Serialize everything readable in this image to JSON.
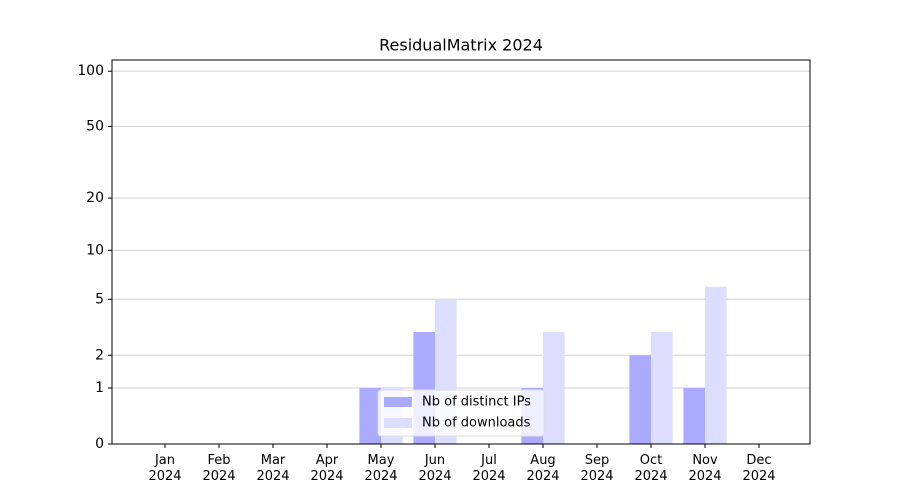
{
  "chart_data": {
    "type": "bar",
    "title": "ResidualMatrix 2024",
    "categories": [
      "Jan\n2024",
      "Feb\n2024",
      "Mar\n2024",
      "Apr\n2024",
      "May\n2024",
      "Jun\n2024",
      "Jul\n2024",
      "Aug\n2024",
      "Sep\n2024",
      "Oct\n2024",
      "Nov\n2024",
      "Dec\n2024"
    ],
    "series": [
      {
        "name": "Nb of distinct IPs",
        "color": "#aaaaff",
        "values": [
          0,
          0,
          0,
          0,
          1,
          3,
          0,
          1,
          0,
          2,
          1,
          0
        ]
      },
      {
        "name": "Nb of downloads",
        "color": "#ddddff",
        "values": [
          0,
          0,
          0,
          0,
          1,
          5,
          0,
          3,
          0,
          3,
          6,
          0
        ]
      }
    ],
    "yscale": "log1p",
    "ylim": [
      0,
      115
    ],
    "yticks": [
      0,
      1,
      2,
      5,
      10,
      20,
      50,
      100
    ],
    "grid": true,
    "legend": "lower center"
  }
}
